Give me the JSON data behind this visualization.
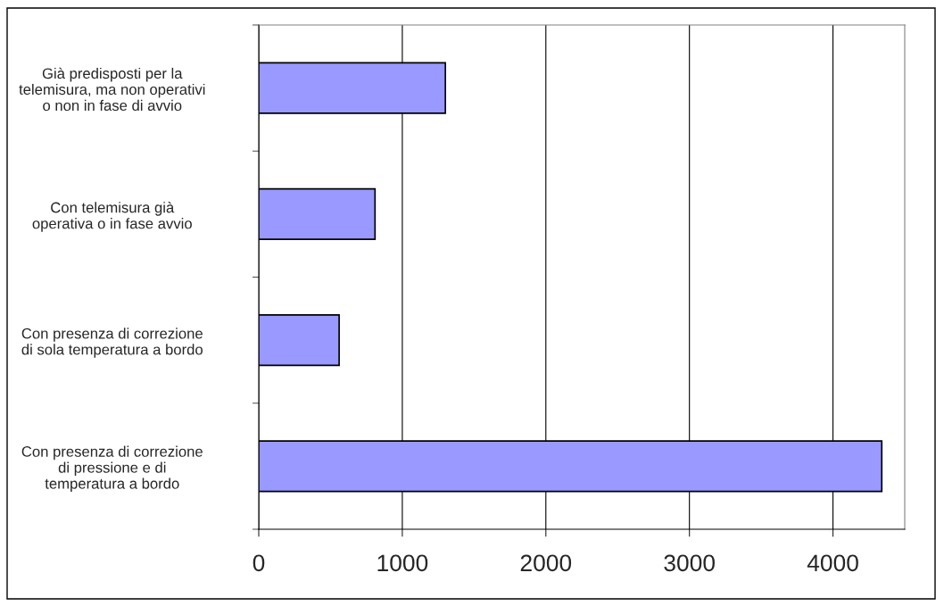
{
  "chart_data": {
    "type": "bar",
    "orientation": "horizontal",
    "categories": [
      "Già predisposti per la\ntelemisura, ma non operativi\no non in fase di avvio",
      "Con telemisura già\noperativa o in fase avvio",
      "Con presenza di correzione\ndi sola temperatura a bordo",
      "Con presenza di correzione\ndi pressione e di\ntemperatura a bordo"
    ],
    "values": [
      1300,
      810,
      560,
      4340
    ],
    "color": "#9999ff",
    "xlim": [
      0,
      4500
    ],
    "xticks": [
      0,
      1000,
      2000,
      3000,
      4000
    ],
    "grid": "x",
    "legend": false
  }
}
